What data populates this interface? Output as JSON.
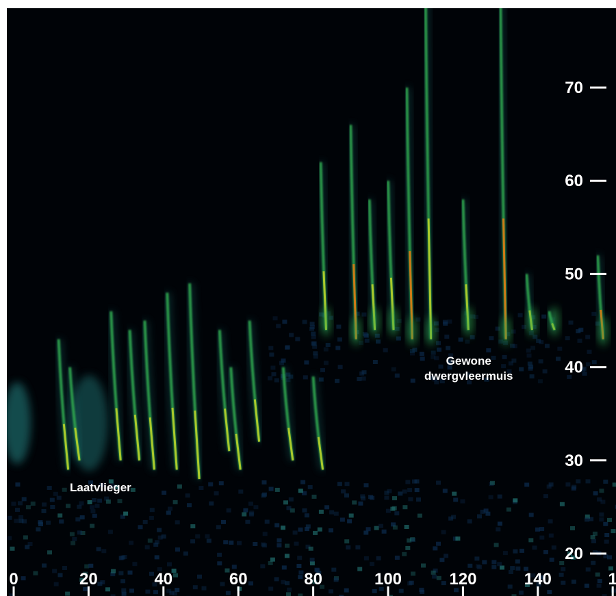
{
  "chart_data": {
    "type": "heatmap",
    "x_ticks": [
      "0",
      "20",
      "40",
      "60",
      "80",
      "100",
      "120",
      "140",
      "1"
    ],
    "y_ticks": [
      "70",
      "60",
      "50",
      "40",
      "30",
      "20"
    ],
    "xlim": [
      0,
      160
    ],
    "ylim": [
      17,
      80
    ],
    "annotations": [
      {
        "text": "Laatvlieger",
        "x": 28,
        "y": 28
      },
      {
        "text": "Gewone\ndwergvleermuis",
        "x": 118,
        "y": 40
      }
    ],
    "calls": [
      {
        "group": "Laatvlieger",
        "t": [
          12,
          15,
          26,
          31,
          35,
          41,
          47
        ],
        "start_khz": [
          43,
          40,
          46,
          44,
          45,
          48,
          49
        ],
        "end_khz": [
          29,
          30,
          30,
          30,
          29,
          29,
          28
        ]
      },
      {
        "group": "Laatvlieger",
        "t": [
          55,
          58,
          63,
          72,
          80
        ],
        "start_khz": [
          44,
          40,
          45,
          40,
          39
        ],
        "end_khz": [
          31,
          29,
          32,
          30,
          29
        ]
      },
      {
        "group": "Gewone dwergvleermuis",
        "t": [
          82,
          90,
          95,
          100,
          105,
          110,
          120,
          130,
          137,
          143,
          156
        ],
        "start_khz": [
          62,
          66,
          58,
          60,
          70,
          80,
          58,
          80,
          50,
          46,
          52
        ],
        "end_khz": [
          44,
          43,
          44,
          44,
          43,
          43,
          44,
          43,
          44,
          44,
          43
        ]
      }
    ],
    "colormap": [
      "#000307",
      "#0b2a4a",
      "#1f6b6a",
      "#2fa44d",
      "#b9d12a",
      "#e07a12"
    ]
  }
}
